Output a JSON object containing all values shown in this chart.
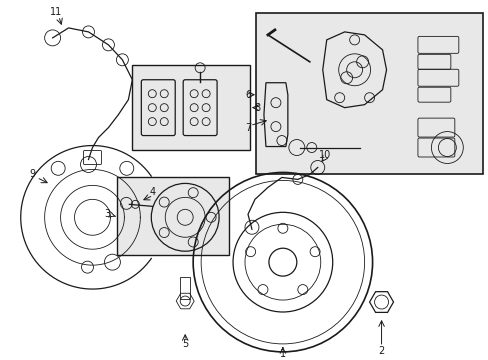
{
  "bg_color": "#ffffff",
  "line_color": "#1a1a1a",
  "box_fill": "#e8e8e8",
  "figsize": [
    4.89,
    3.6
  ],
  "dpi": 100,
  "xlim": [
    0,
    489
  ],
  "ylim": [
    0,
    360
  ]
}
